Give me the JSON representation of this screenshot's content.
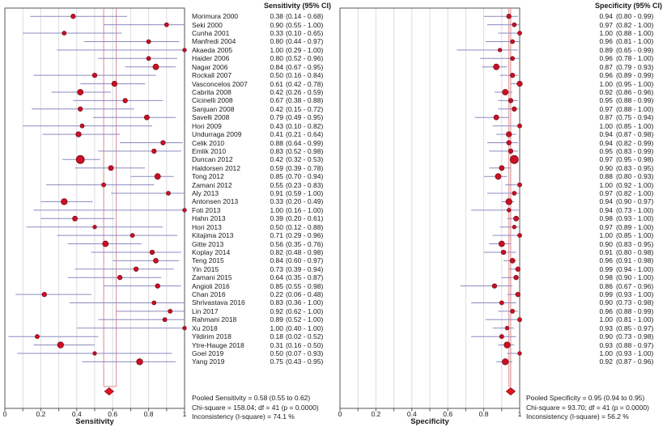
{
  "chart_data": {
    "type": "forest",
    "title": "Paired forest plots of sensitivity and specificity with 95% CI per study and pooled estimates",
    "xlim": [
      0,
      1
    ],
    "grid": true,
    "panels": [
      {
        "header": "Sensitivity (95% CI)",
        "xlabel": "Sensitivity",
        "measure": "sens",
        "xticks": [
          "0",
          "0.2",
          "0.4",
          "0.6",
          "0.8",
          "1"
        ],
        "pooled": {
          "estimate": 0.58,
          "lo": 0.55,
          "hi": 0.62
        },
        "stats_lines": [
          "Pooled Sensitivity = 0.58 (0.55 to 0.62)",
          "Chi-square = 158.04; df = 41 (p = 0.0000)",
          "Inconsistency (I-square) = 74.1 %"
        ]
      },
      {
        "header": "Specificity (95% CI)",
        "xlabel": "Specificity",
        "measure": "spec",
        "xticks": [
          "0",
          "0.2",
          "0.4",
          "0.6",
          "0.8",
          "1"
        ],
        "pooled": {
          "estimate": 0.95,
          "lo": 0.94,
          "hi": 0.95
        },
        "stats_lines": [
          "Pooled Specificity = 0.95 (0.94 to 0.95)",
          "Chi-square = 93.70; df = 41 (p = 0.0000)",
          "Inconsistency (I-square) = 56.2 %"
        ]
      }
    ],
    "studies": [
      {
        "name": "Morimura 2000",
        "sens": [
          0.38,
          0.14,
          0.68
        ],
        "spec": [
          0.94,
          0.8,
          0.99
        ],
        "marker": 5.5
      },
      {
        "name": "Seki 2000",
        "sens": [
          0.9,
          0.55,
          1.0
        ],
        "spec": [
          0.97,
          0.82,
          1.0
        ],
        "marker": 5
      },
      {
        "name": "Cunha 2001",
        "sens": [
          0.33,
          0.1,
          0.65
        ],
        "spec": [
          1.0,
          0.88,
          1.0
        ],
        "marker": 5
      },
      {
        "name": "Manfredi 2004",
        "sens": [
          0.8,
          0.44,
          0.97
        ],
        "spec": [
          0.96,
          0.81,
          1.0
        ],
        "marker": 5
      },
      {
        "name": "Akaeda 2005",
        "sens": [
          1.0,
          0.29,
          1.0
        ],
        "spec": [
          0.89,
          0.65,
          0.99
        ],
        "marker": 4.5
      },
      {
        "name": "Haider 2006",
        "sens": [
          0.8,
          0.52,
          0.96
        ],
        "spec": [
          0.96,
          0.78,
          1.0
        ],
        "marker": 5
      },
      {
        "name": "Nagar 2006",
        "sens": [
          0.84,
          0.67,
          0.95
        ],
        "spec": [
          0.87,
          0.79,
          0.93
        ],
        "marker": 7
      },
      {
        "name": "Rockall 2007",
        "sens": [
          0.5,
          0.16,
          0.84
        ],
        "spec": [
          0.96,
          0.89,
          0.99
        ],
        "marker": 5.5
      },
      {
        "name": "Vasconcelos 2007",
        "sens": [
          0.61,
          0.42,
          0.78
        ],
        "spec": [
          1.0,
          0.95,
          1.0
        ],
        "marker": 6.5
      },
      {
        "name": "Cabrita 2008",
        "sens": [
          0.42,
          0.26,
          0.59
        ],
        "spec": [
          0.92,
          0.86,
          0.96
        ],
        "marker": 7
      },
      {
        "name": "Cicinelli 2008",
        "sens": [
          0.67,
          0.38,
          0.88
        ],
        "spec": [
          0.95,
          0.88,
          0.99
        ],
        "marker": 5.5
      },
      {
        "name": "Sanjuan 2008",
        "sens": [
          0.42,
          0.15,
          0.72
        ],
        "spec": [
          0.97,
          0.88,
          1.0
        ],
        "marker": 5.5
      },
      {
        "name": "Savelli 2008",
        "sens": [
          0.79,
          0.49,
          0.95
        ],
        "spec": [
          0.87,
          0.75,
          0.94
        ],
        "marker": 6
      },
      {
        "name": "Hori 2009",
        "sens": [
          0.43,
          0.1,
          0.82
        ],
        "spec": [
          1.0,
          0.85,
          1.0
        ],
        "marker": 5
      },
      {
        "name": "Undurraga 2009",
        "sens": [
          0.41,
          0.21,
          0.64
        ],
        "spec": [
          0.94,
          0.87,
          0.98
        ],
        "marker": 6.5
      },
      {
        "name": "Celik 2010",
        "sens": [
          0.88,
          0.64,
          0.99
        ],
        "spec": [
          0.94,
          0.82,
          0.99
        ],
        "marker": 5.5
      },
      {
        "name": "Emlik 2010",
        "sens": [
          0.83,
          0.52,
          0.98
        ],
        "spec": [
          0.95,
          0.83,
          0.99
        ],
        "marker": 5.5
      },
      {
        "name": "Duncan 2012",
        "sens": [
          0.42,
          0.32,
          0.53
        ],
        "spec": [
          0.97,
          0.95,
          0.98
        ],
        "marker": 10
      },
      {
        "name": "Haldorsen 2012",
        "sens": [
          0.59,
          0.39,
          0.78
        ],
        "spec": [
          0.9,
          0.83,
          0.95
        ],
        "marker": 6
      },
      {
        "name": "Tong 2012",
        "sens": [
          0.85,
          0.7,
          0.94
        ],
        "spec": [
          0.88,
          0.8,
          0.93
        ],
        "marker": 7
      },
      {
        "name": "Zamani 2012",
        "sens": [
          0.55,
          0.23,
          0.83
        ],
        "spec": [
          1.0,
          0.92,
          1.0
        ],
        "marker": 5
      },
      {
        "name": "Aly 2013",
        "sens": [
          0.91,
          0.59,
          1.0
        ],
        "spec": [
          0.97,
          0.82,
          1.0
        ],
        "marker": 5
      },
      {
        "name": "Antonsen 2013",
        "sens": [
          0.33,
          0.2,
          0.49
        ],
        "spec": [
          0.94,
          0.9,
          0.97
        ],
        "marker": 7.5
      },
      {
        "name": "Foti 2013",
        "sens": [
          1.0,
          0.16,
          1.0
        ],
        "spec": [
          0.94,
          0.73,
          1.0
        ],
        "marker": 4.5
      },
      {
        "name": "Hahn 2013",
        "sens": [
          0.39,
          0.2,
          0.61
        ],
        "spec": [
          0.98,
          0.93,
          1.0
        ],
        "marker": 6
      },
      {
        "name": "Hori 2013",
        "sens": [
          0.5,
          0.12,
          0.88
        ],
        "spec": [
          0.97,
          0.89,
          1.0
        ],
        "marker": 4.5
      },
      {
        "name": "Kitajima 2013",
        "sens": [
          0.71,
          0.29,
          0.96
        ],
        "spec": [
          1.0,
          0.85,
          1.0
        ],
        "marker": 5
      },
      {
        "name": "Gitte 2013",
        "sens": [
          0.56,
          0.35,
          0.76
        ],
        "spec": [
          0.9,
          0.83,
          0.95
        ],
        "marker": 7
      },
      {
        "name": "Koplay 2014",
        "sens": [
          0.82,
          0.48,
          0.98
        ],
        "spec": [
          0.91,
          0.8,
          0.98
        ],
        "marker": 5.5
      },
      {
        "name": "Teng 2015",
        "sens": [
          0.84,
          0.6,
          0.97
        ],
        "spec": [
          0.96,
          0.91,
          0.98
        ],
        "marker": 6
      },
      {
        "name": "Yin 2015",
        "sens": [
          0.73,
          0.39,
          0.94
        ],
        "spec": [
          0.99,
          0.94,
          1.0
        ],
        "marker": 5.5
      },
      {
        "name": "Zamani 2015",
        "sens": [
          0.64,
          0.35,
          0.87
        ],
        "spec": [
          0.98,
          0.9,
          1.0
        ],
        "marker": 5.5
      },
      {
        "name": "Angioli 2016",
        "sens": [
          0.85,
          0.55,
          0.98
        ],
        "spec": [
          0.86,
          0.67,
          0.96
        ],
        "marker": 5.5
      },
      {
        "name": "Chan 2016",
        "sens": [
          0.22,
          0.06,
          0.48
        ],
        "spec": [
          0.99,
          0.93,
          1.0
        ],
        "marker": 5.5
      },
      {
        "name": "Shrivastava 2016",
        "sens": [
          0.83,
          0.36,
          1.0
        ],
        "spec": [
          0.9,
          0.73,
          0.98
        ],
        "marker": 5
      },
      {
        "name": "Lin 2017",
        "sens": [
          0.92,
          0.62,
          1.0
        ],
        "spec": [
          0.96,
          0.88,
          0.99
        ],
        "marker": 5
      },
      {
        "name": "Rahmani 2018",
        "sens": [
          0.89,
          0.52,
          1.0
        ],
        "spec": [
          1.0,
          0.81,
          1.0
        ],
        "marker": 5
      },
      {
        "name": "Xu 2018",
        "sens": [
          1.0,
          0.4,
          1.0
        ],
        "spec": [
          0.93,
          0.85,
          0.97
        ],
        "marker": 4.5
      },
      {
        "name": "Yildirim 2018",
        "sens": [
          0.18,
          0.02,
          0.52
        ],
        "spec": [
          0.9,
          0.73,
          0.98
        ],
        "marker": 5
      },
      {
        "name": "Ytre-Hauge 2018",
        "sens": [
          0.31,
          0.16,
          0.5
        ],
        "spec": [
          0.93,
          0.88,
          0.97
        ],
        "marker": 7.5
      },
      {
        "name": "Goel 2019",
        "sens": [
          0.5,
          0.07,
          0.93
        ],
        "spec": [
          1.0,
          0.93,
          1.0
        ],
        "marker": 4.5
      },
      {
        "name": "Yang 2019",
        "sens": [
          0.75,
          0.43,
          0.95
        ],
        "spec": [
          0.92,
          0.87,
          0.96
        ],
        "marker": 7.5
      }
    ],
    "colors": {
      "marker": "#cb1025",
      "marker_edge": "#7e0a14",
      "ci_line": "#8a8ac1",
      "pooled_line": "#d98a8c",
      "diamond": "#e2131f",
      "gridline": "#dcdce2",
      "frame": "#555555",
      "text": "#1a1a1a"
    }
  }
}
